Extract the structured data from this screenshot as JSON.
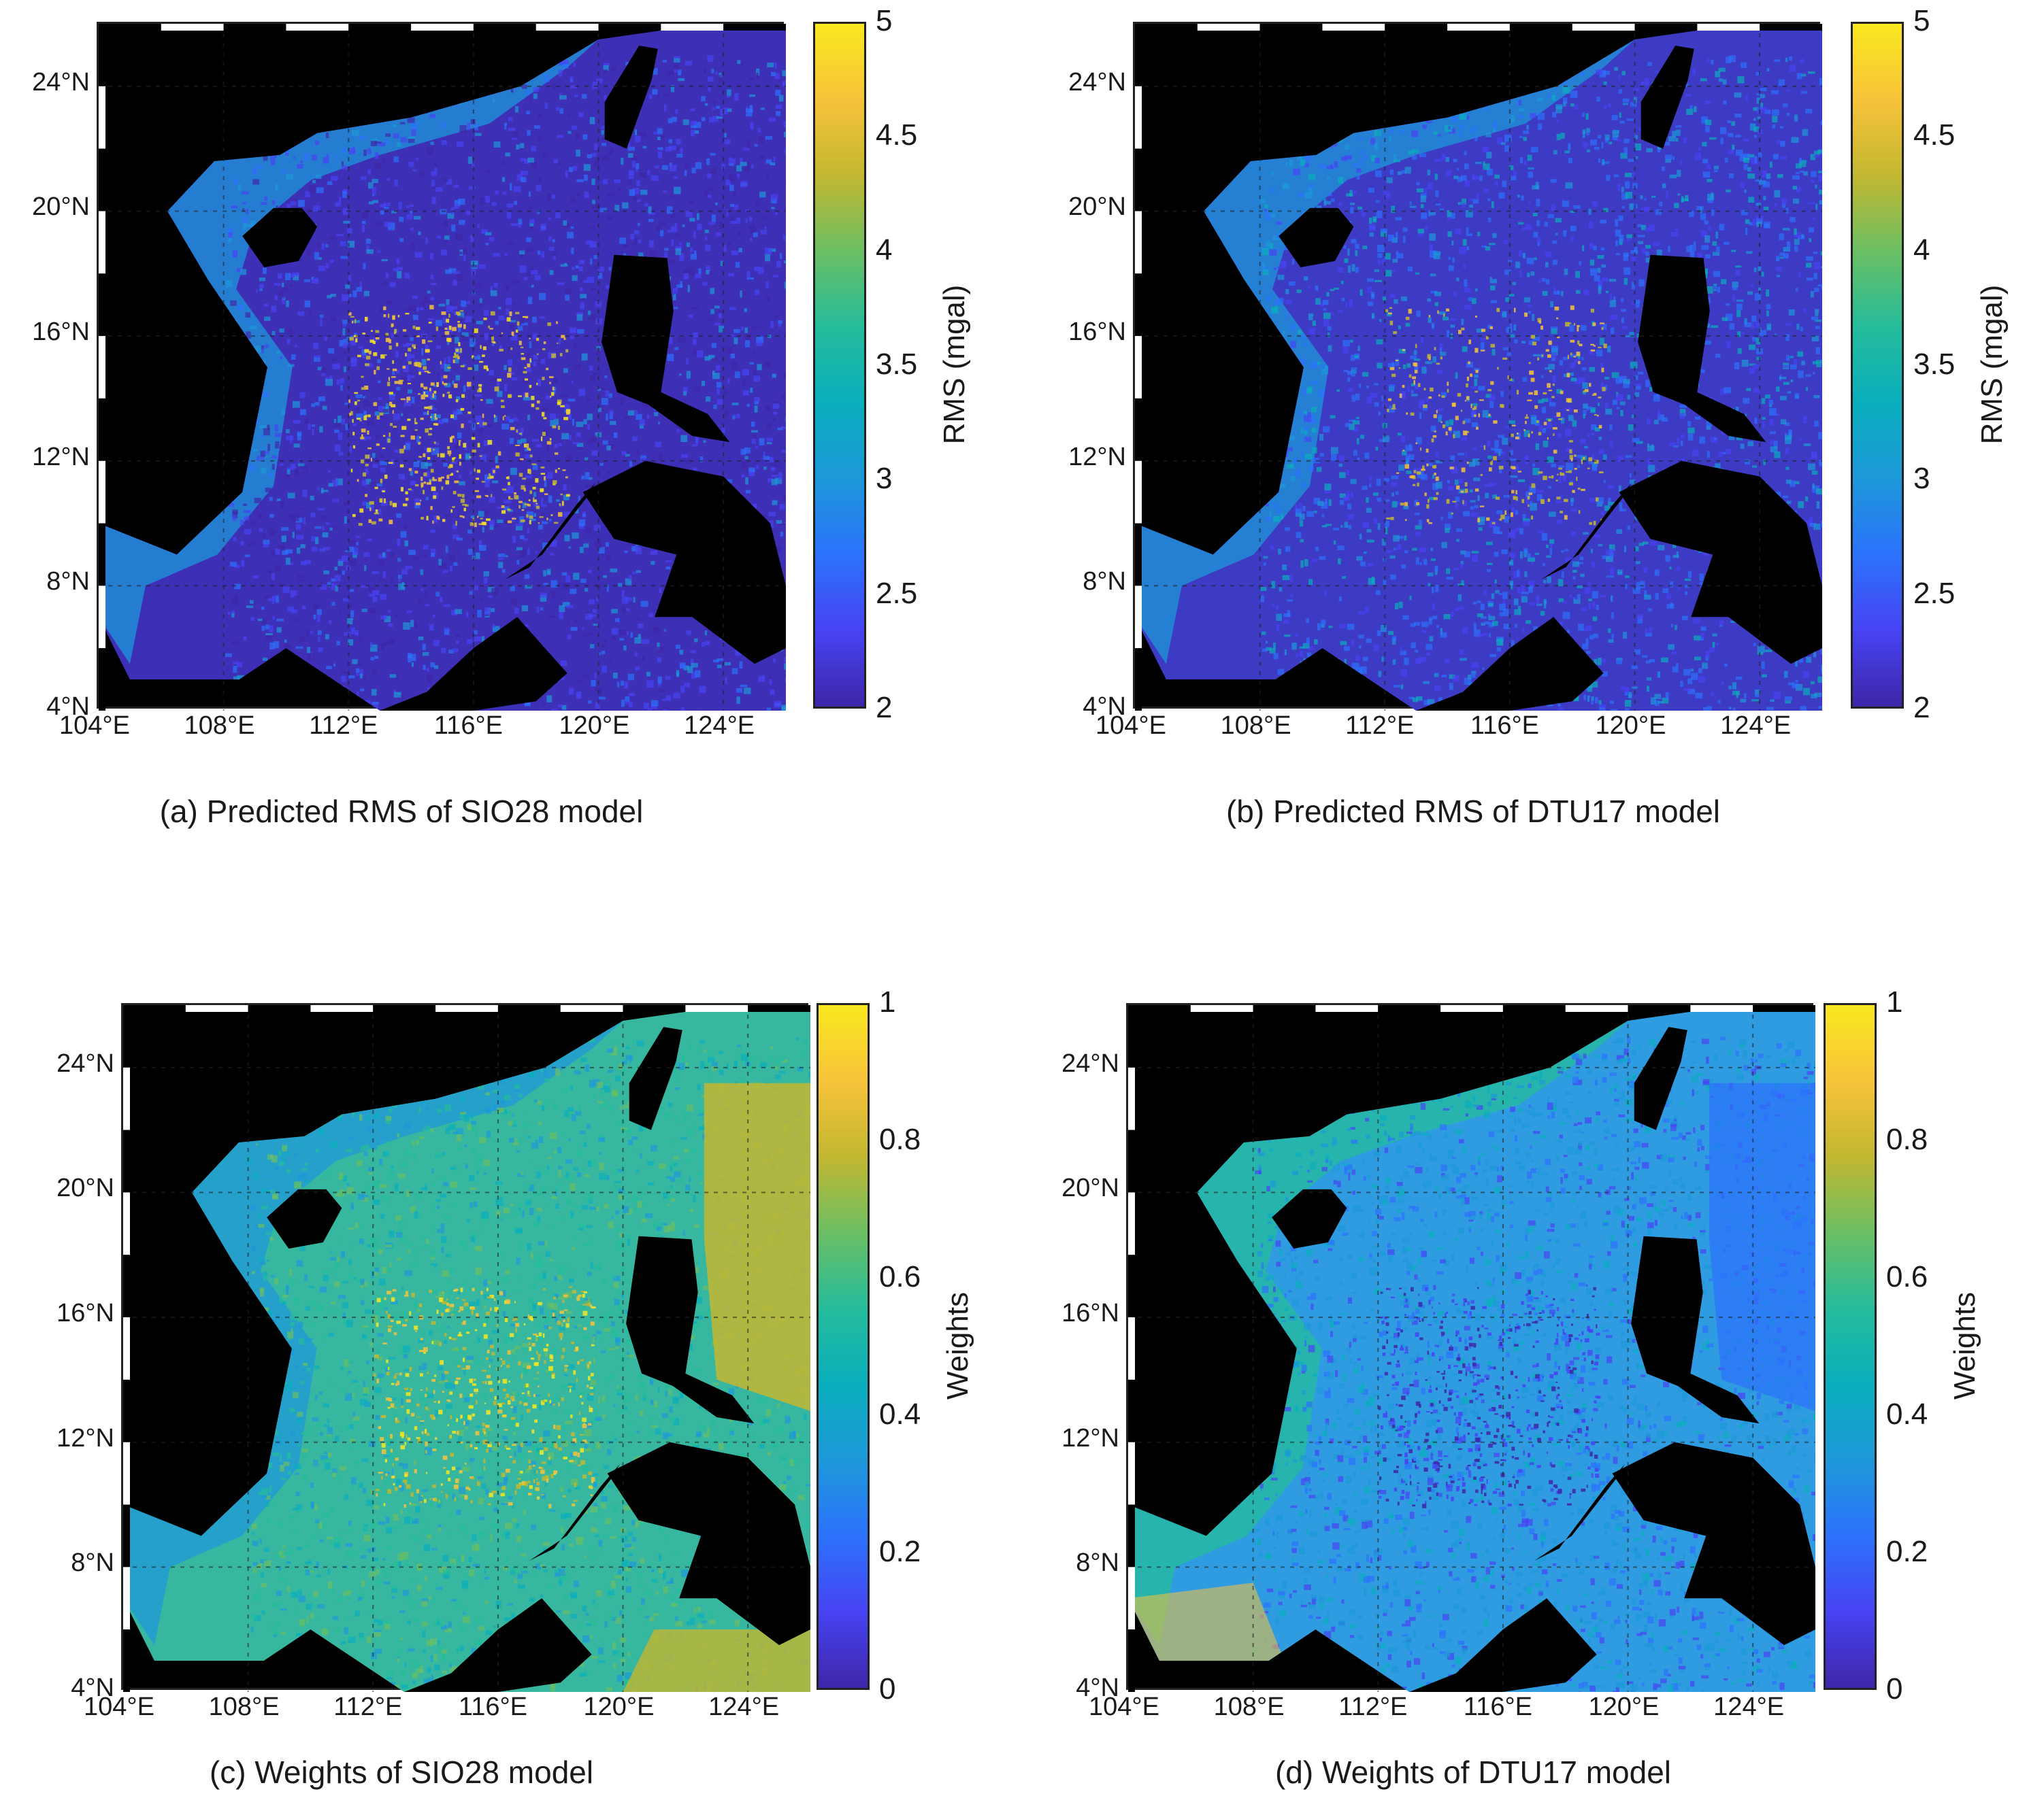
{
  "chart_data": [
    {
      "type": "heatmap",
      "caption": "(a) Predicted RMS of SIO28 model",
      "colorbar_label": "RMS (mgal)",
      "colorbar_ticks": [
        "5",
        "4.5",
        "4",
        "3.5",
        "3",
        "2.5",
        "2"
      ],
      "colorbar_range": [
        2,
        5
      ],
      "lat_ticks": [
        "24°N",
        "20°N",
        "16°N",
        "12°N",
        "8°N",
        "4°N"
      ],
      "lon_ticks": [
        "104°E",
        "108°E",
        "112°E",
        "116°E",
        "120°E",
        "124°E"
      ],
      "lat_range": [
        4,
        26
      ],
      "lon_range": [
        104,
        126
      ],
      "variant": "rms_sio"
    },
    {
      "type": "heatmap",
      "caption": "(b) Predicted RMS of DTU17 model",
      "colorbar_label": "RMS (mgal)",
      "colorbar_ticks": [
        "5",
        "4.5",
        "4",
        "3.5",
        "3",
        "2.5",
        "2"
      ],
      "colorbar_range": [
        2,
        5
      ],
      "lat_ticks": [
        "24°N",
        "20°N",
        "16°N",
        "12°N",
        "8°N",
        "4°N"
      ],
      "lon_ticks": [
        "104°E",
        "108°E",
        "112°E",
        "116°E",
        "120°E",
        "124°E"
      ],
      "lat_range": [
        4,
        26
      ],
      "lon_range": [
        104,
        126
      ],
      "variant": "rms_dtu"
    },
    {
      "type": "heatmap",
      "caption": "(c) Weights of SIO28 model",
      "colorbar_label": "Weights",
      "colorbar_ticks": [
        "1",
        "0.8",
        "0.6",
        "0.4",
        "0.2",
        "0"
      ],
      "colorbar_range": [
        0,
        1
      ],
      "lat_ticks": [
        "24°N",
        "20°N",
        "16°N",
        "12°N",
        "8°N",
        "4°N"
      ],
      "lon_ticks": [
        "104°E",
        "108°E",
        "112°E",
        "116°E",
        "120°E",
        "124°E"
      ],
      "lat_range": [
        4,
        26
      ],
      "lon_range": [
        104,
        126
      ],
      "variant": "w_sio"
    },
    {
      "type": "heatmap",
      "caption": "(d) Weights of DTU17 model",
      "colorbar_label": "Weights",
      "colorbar_ticks": [
        "1",
        "0.8",
        "0.6",
        "0.4",
        "0.2",
        "0"
      ],
      "colorbar_range": [
        0,
        1
      ],
      "lat_ticks": [
        "24°N",
        "20°N",
        "16°N",
        "12°N",
        "8°N",
        "4°N"
      ],
      "lon_ticks": [
        "104°E",
        "108°E",
        "112°E",
        "116°E",
        "120°E",
        "124°E"
      ],
      "lat_range": [
        4,
        26
      ],
      "lon_range": [
        104,
        126
      ],
      "variant": "w_dtu"
    }
  ],
  "colors": {
    "land": "#000000",
    "colormap": [
      "#3e26a8",
      "#4743f3",
      "#2c72fc",
      "#1d98d9",
      "#0aaebd",
      "#25bc9b",
      "#6bbf63",
      "#c3b731",
      "#f7c33a",
      "#f9e81f"
    ],
    "rms_sio_ocean": "#3d2fb6",
    "rms_dtu_ocean": "#3d3ac4",
    "w_sio_ocean": "#38b7a0",
    "w_dtu_ocean": "#2f9be0"
  }
}
